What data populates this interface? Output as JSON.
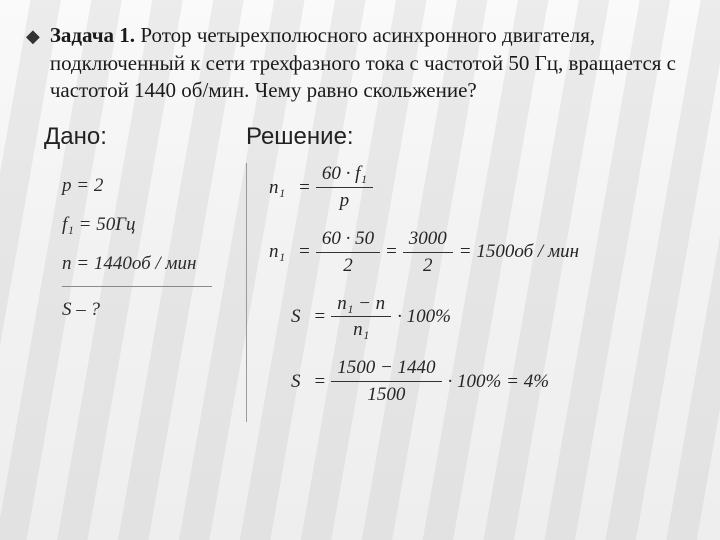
{
  "colors": {
    "text": "#222222",
    "rule": "#8a8a8a",
    "background": "#f3f3f3",
    "stripe": "rgba(170,170,170,0.18)"
  },
  "bullet": "◆",
  "problem": {
    "label": "Задача 1.",
    "text": " Ротор четырехполюсного асинхронного двигателя, подключенный к сети трехфазного тока с частотой 50 Гц, вращается с частотой 1440 об/мин. Чему равно скольжение?"
  },
  "headers": {
    "given": "Дано:",
    "solution": "Решение:"
  },
  "given": {
    "l1": "p = 2",
    "l2": "f₁ = 50Гц",
    "l3": "n = 1440об / мин",
    "l4": "S – ?"
  },
  "solution": {
    "eq1": {
      "lhs": "n₁",
      "num": "60 · f₁",
      "den": "p"
    },
    "eq2": {
      "lhs": "n₁",
      "frac1": {
        "num": "60 · 50",
        "den": "2"
      },
      "frac2": {
        "num": "3000",
        "den": "2"
      },
      "result": "= 1500об / мин"
    },
    "eq3": {
      "lhs": "S",
      "num": "n₁ − n",
      "den": "n₁",
      "tail": "· 100%"
    },
    "eq4": {
      "lhs": "S",
      "num": "1500 − 1440",
      "den": "1500",
      "tail": "· 100% = 4%"
    }
  }
}
